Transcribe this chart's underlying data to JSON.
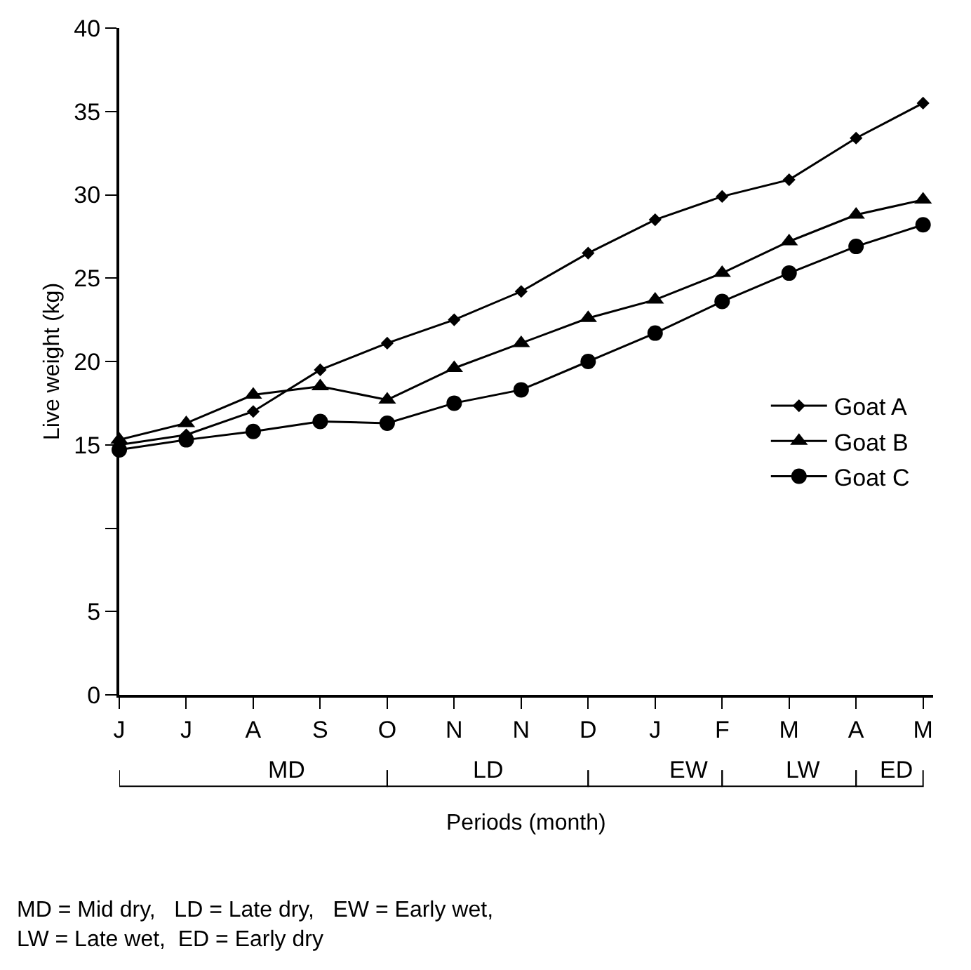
{
  "chart_data": {
    "type": "line",
    "xlabel": "Periods (month)",
    "ylabel": "Live weight (kg)",
    "categories": [
      "J",
      "J",
      "A",
      "S",
      "O",
      "N",
      "N",
      "D",
      "J",
      "F",
      "M",
      "A",
      "M"
    ],
    "series": [
      {
        "name": "Goat A",
        "color": "#000000",
        "marker": "diamond",
        "values": [
          15.0,
          15.6,
          17.0,
          19.5,
          21.1,
          22.5,
          24.2,
          26.5,
          28.5,
          29.9,
          30.9,
          33.4,
          35.5
        ]
      },
      {
        "name": "Goat B",
        "color": "#000000",
        "marker": "triangle",
        "values": [
          15.3,
          16.3,
          18.0,
          18.5,
          17.7,
          19.6,
          21.1,
          22.6,
          23.7,
          25.3,
          27.2,
          28.8,
          29.7
        ]
      },
      {
        "name": "Goat C",
        "color": "#000000",
        "marker": "circle",
        "values": [
          14.7,
          15.3,
          15.8,
          16.4,
          16.3,
          17.5,
          18.3,
          20.0,
          21.7,
          23.6,
          25.3,
          26.9,
          28.2
        ]
      }
    ],
    "ylim": [
      0,
      40
    ],
    "yticks": [
      0,
      5,
      {
        "value": 10,
        "label": null
      },
      15,
      20,
      25,
      30,
      35,
      40
    ],
    "legend": "right",
    "line_style": "solid",
    "annotations": [
      "MD",
      "LD",
      "EW",
      "LW",
      "ED",
      "MD = Mid dry,   LD = Late dry,   EW = Early wet,\nLW = Late wet,  ED = Early dry"
    ]
  }
}
